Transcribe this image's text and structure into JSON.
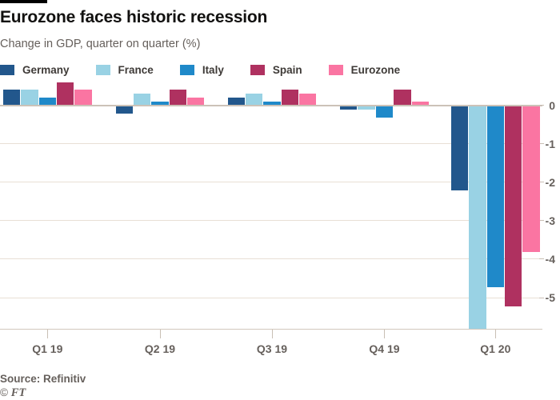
{
  "header": {
    "title": "Eurozone faces historic recession",
    "subtitle": "Change in GDP, quarter on quarter (%)"
  },
  "chart_data": {
    "type": "bar",
    "title": "Eurozone faces historic recession",
    "subtitle": "Change in GDP, quarter on quarter (%)",
    "categories": [
      "Q1 19",
      "Q2 19",
      "Q3 19",
      "Q4 19",
      "Q1 20"
    ],
    "series": [
      {
        "name": "Germany",
        "color": "#22578C",
        "values": [
          0.4,
          -0.2,
          0.2,
          -0.1,
          -2.2
        ]
      },
      {
        "name": "France",
        "color": "#99D2E4",
        "values": [
          0.4,
          0.3,
          0.3,
          -0.1,
          -5.8
        ]
      },
      {
        "name": "Italy",
        "color": "#1F89C9",
        "values": [
          0.2,
          0.1,
          0.1,
          -0.3,
          -4.7
        ]
      },
      {
        "name": "Spain",
        "color": "#AF3160",
        "values": [
          0.6,
          0.4,
          0.4,
          0.4,
          -5.2
        ]
      },
      {
        "name": "Eurozone",
        "color": "#FA75A2",
        "values": [
          0.4,
          0.2,
          0.3,
          0.1,
          -3.8
        ]
      }
    ],
    "xlabel": "",
    "ylabel": "",
    "yticks": [
      0,
      -1,
      -2,
      -3,
      -4,
      -5
    ],
    "ylim": [
      0.72,
      -5.8
    ],
    "grid": true,
    "legend_position": "top",
    "gridline_color": "#E8DFD5",
    "zero_line_color": "#CCC2B8",
    "tick_label_color": "#66605C",
    "background_color": "#FFFFFF"
  },
  "footer": {
    "source": "Source: Refinitiv",
    "credit_symbol": "©",
    "credit_name": "FT"
  }
}
